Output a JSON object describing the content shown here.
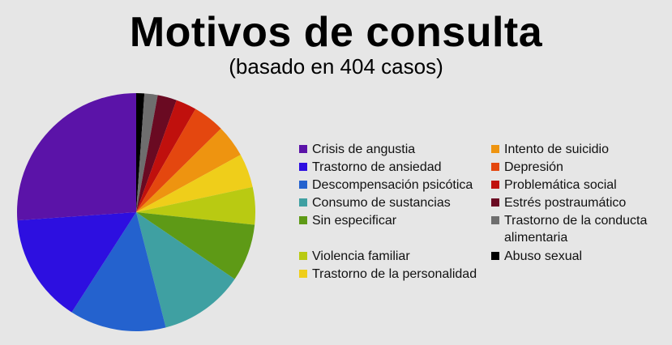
{
  "title": "Motivos de consulta",
  "subtitle": "(basado en 404 casos)",
  "chart_data": {
    "type": "pie",
    "title": "Motivos de consulta",
    "subtitle": "(basado en 404 casos)",
    "total_cases": 404,
    "start": "12 o'clock, clockwise",
    "legend_placement": "right",
    "slices": [
      {
        "label": "Abuso sexual",
        "value": 1.1,
        "color": "#000000"
      },
      {
        "label": "Trastorno de la conducta alimentaria",
        "value": 1.8,
        "color": "#6e6e6e"
      },
      {
        "label": "Estrés postraumático",
        "value": 2.6,
        "color": "#6a0a22"
      },
      {
        "label": "Problemática social",
        "value": 2.8,
        "color": "#c0100d"
      },
      {
        "label": "Depresión",
        "value": 4.3,
        "color": "#e4470f"
      },
      {
        "label": "Intento de suicidio",
        "value": 4.4,
        "color": "#ee9410"
      },
      {
        "label": "Trastorno de la personalidad",
        "value": 4.6,
        "color": "#efce1a"
      },
      {
        "label": "Violencia familiar",
        "value": 5.1,
        "color": "#b9ca12"
      },
      {
        "label": "Sin especificar",
        "value": 7.8,
        "color": "#5e9a16"
      },
      {
        "label": "Consumo de sustancias",
        "value": 11.5,
        "color": "#3fa0a2"
      },
      {
        "label": "Descompensación psicótica",
        "value": 13.1,
        "color": "#2462ce"
      },
      {
        "label": "Trastorno  de ansiedad",
        "value": 14.8,
        "color": "#2d0fe0"
      },
      {
        "label": "Crisis de angustia",
        "value": 26.1,
        "color": "#5b13a8"
      }
    ]
  },
  "legend": {
    "left_column": [
      {
        "label": "Crisis de angustia",
        "color": "#5b13a8"
      },
      {
        "label": "Trastorno  de ansiedad",
        "color": "#2d0fe0"
      },
      {
        "label": "Descompensación psicótica",
        "color": "#2462ce"
      },
      {
        "label": "Consumo de sustancias",
        "color": "#3fa0a2"
      },
      {
        "label": "Sin especificar",
        "color": "#5e9a16"
      },
      {
        "label": "Violencia familiar",
        "color": "#b9ca12"
      },
      {
        "label": "Trastorno de la personalidad",
        "color": "#efce1a"
      }
    ],
    "right_column": [
      {
        "label": "Intento de suicidio",
        "color": "#ee9410"
      },
      {
        "label": "Depresión",
        "color": "#e4470f"
      },
      {
        "label": "Problemática social",
        "color": "#c0100d"
      },
      {
        "label": "Estrés postraumático",
        "color": "#6a0a22"
      },
      {
        "label": "Trastorno de la conducta",
        "label_line2": "alimentaria",
        "color": "#6e6e6e"
      },
      {
        "label": "Abuso sexual",
        "color": "#000000"
      }
    ]
  }
}
